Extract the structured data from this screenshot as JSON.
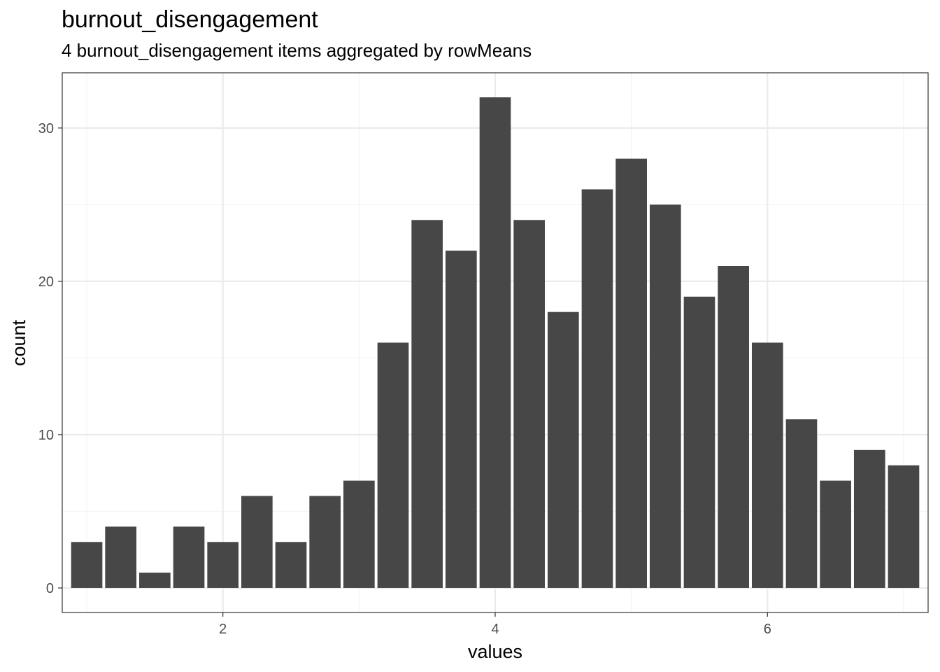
{
  "chart_data": {
    "type": "bar",
    "title": "burnout_disengagement",
    "subtitle": "4 burnout_disengagement items aggregated by rowMeans",
    "xlabel": "values",
    "ylabel": "count",
    "xlim": [
      0.82,
      7.18
    ],
    "ylim": [
      -1.6,
      33.6
    ],
    "grid": true,
    "x_ticks": [
      2,
      4,
      6
    ],
    "y_ticks": [
      0,
      10,
      20,
      30
    ],
    "bin_width": 0.25,
    "x": [
      1.0,
      1.25,
      1.5,
      1.75,
      2.0,
      2.25,
      2.5,
      2.75,
      3.0,
      3.25,
      3.5,
      3.75,
      4.0,
      4.25,
      4.5,
      4.75,
      5.0,
      5.25,
      5.5,
      5.75,
      6.0,
      6.25,
      6.5,
      6.75,
      7.0
    ],
    "values": [
      3,
      4,
      1,
      4,
      3,
      6,
      3,
      6,
      7,
      16,
      24,
      22,
      32,
      24,
      18,
      26,
      28,
      25,
      19,
      21,
      16,
      11,
      7,
      9,
      8
    ],
    "bar_color": "#474747",
    "panel_border_color": "#333333",
    "grid_major_color": "#ebebeb",
    "grid_minor_color": "#f3f3f3"
  }
}
